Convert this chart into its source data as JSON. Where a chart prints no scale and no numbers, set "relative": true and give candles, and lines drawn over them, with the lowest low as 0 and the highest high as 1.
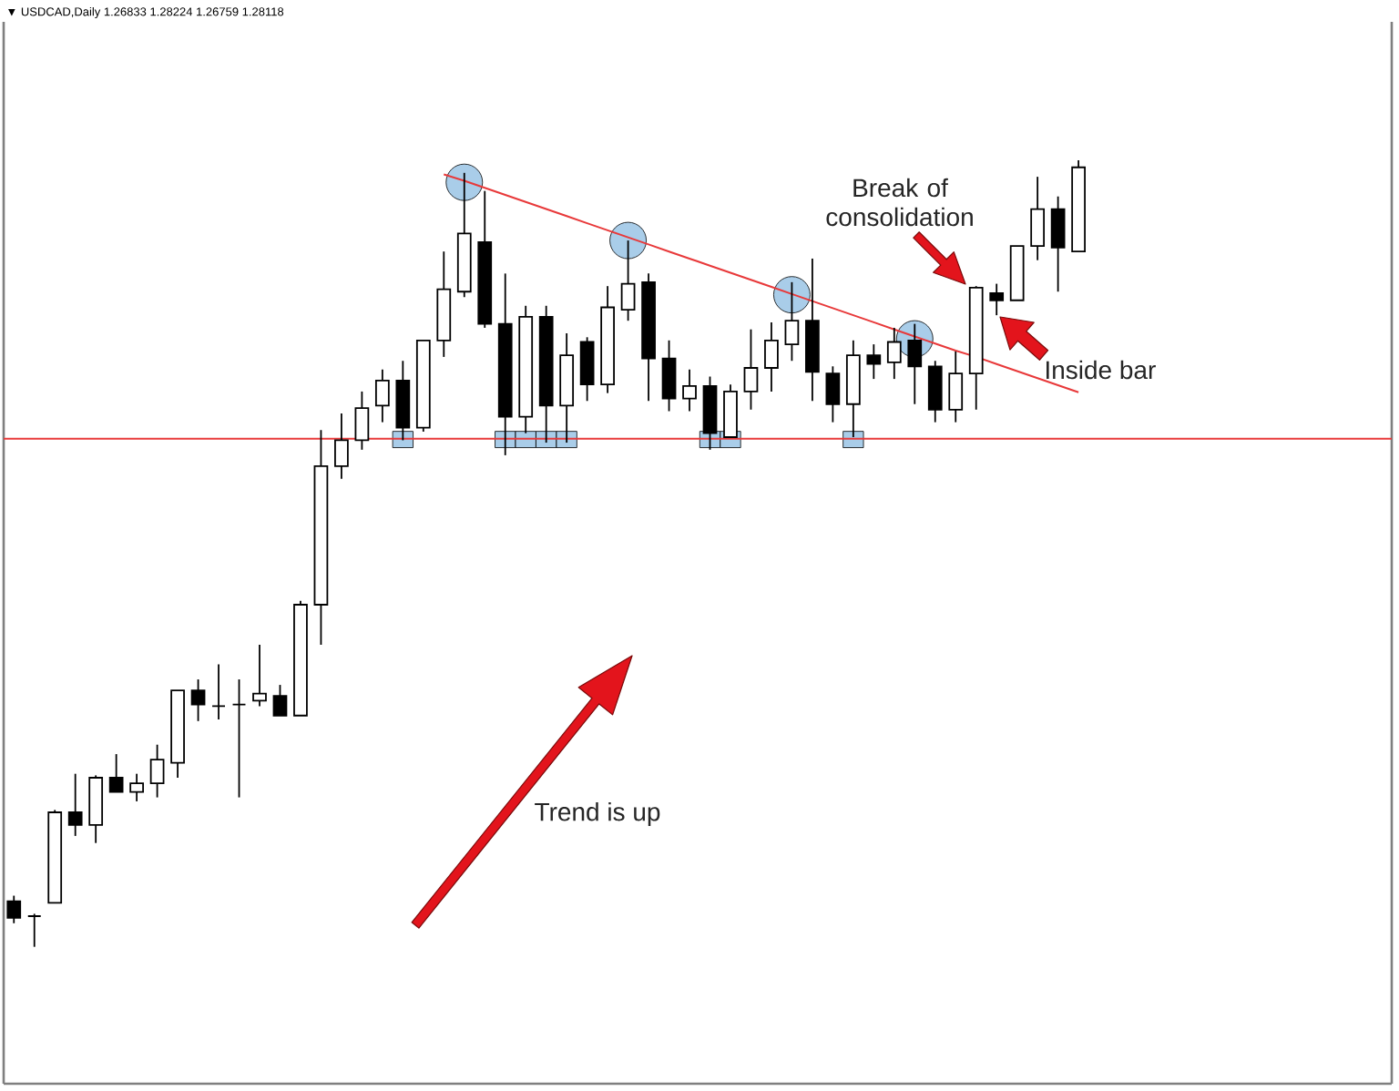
{
  "chart_data": {
    "type": "candlestick",
    "title": "▼ USDCAD,Daily 1.26833 1.28224 1.26759 1.28118",
    "relative": true,
    "categories": [
      null,
      null,
      null,
      null,
      null,
      null,
      null,
      null,
      null,
      null,
      null,
      null,
      null,
      null,
      null,
      null,
      null,
      null,
      null,
      null,
      null,
      null,
      null,
      null,
      null,
      null,
      null,
      null,
      null,
      null,
      null,
      null,
      null,
      null,
      null,
      null,
      null,
      null,
      null,
      null,
      null,
      null,
      null,
      null,
      null,
      null,
      null,
      null,
      null,
      null,
      null,
      null,
      null
    ],
    "ohlc": [
      [
        0.058,
        0.065,
        0.03,
        0.037
      ],
      [
        0.039,
        0.042,
        0.0,
        0.039
      ],
      [
        0.056,
        0.174,
        0.056,
        0.171
      ],
      [
        0.171,
        0.22,
        0.141,
        0.155
      ],
      [
        0.155,
        0.218,
        0.132,
        0.215
      ],
      [
        0.215,
        0.245,
        0.197,
        0.197
      ],
      [
        0.197,
        0.22,
        0.185,
        0.208
      ],
      [
        0.208,
        0.257,
        0.19,
        0.238
      ],
      [
        0.234,
        0.326,
        0.215,
        0.326
      ],
      [
        0.326,
        0.34,
        0.287,
        0.308
      ],
      [
        0.306,
        0.359,
        0.289,
        0.306
      ],
      [
        0.308,
        0.34,
        0.19,
        0.308
      ],
      [
        0.313,
        0.384,
        0.306,
        0.322
      ],
      [
        0.319,
        0.333,
        0.294,
        0.294
      ],
      [
        0.294,
        0.44,
        0.294,
        0.435
      ],
      [
        0.435,
        0.657,
        0.384,
        0.611
      ],
      [
        0.611,
        0.678,
        0.595,
        0.644
      ],
      [
        0.644,
        0.706,
        0.632,
        0.685
      ],
      [
        0.688,
        0.734,
        0.667,
        0.72
      ],
      [
        0.72,
        0.745,
        0.644,
        0.66
      ],
      [
        0.66,
        0.771,
        0.655,
        0.771
      ],
      [
        0.771,
        0.884,
        0.75,
        0.836
      ],
      [
        0.833,
        0.984,
        0.826,
        0.907
      ],
      [
        0.896,
        0.961,
        0.787,
        0.792
      ],
      [
        0.792,
        0.856,
        0.625,
        0.674
      ],
      [
        0.674,
        0.815,
        0.653,
        0.801
      ],
      [
        0.801,
        0.815,
        0.641,
        0.688
      ],
      [
        0.688,
        0.78,
        0.641,
        0.752
      ],
      [
        0.769,
        0.775,
        0.694,
        0.715
      ],
      [
        0.715,
        0.84,
        0.704,
        0.813
      ],
      [
        0.81,
        0.898,
        0.796,
        0.843
      ],
      [
        0.845,
        0.856,
        0.694,
        0.748
      ],
      [
        0.748,
        0.771,
        0.681,
        0.697
      ],
      [
        0.697,
        0.734,
        0.681,
        0.713
      ],
      [
        0.713,
        0.725,
        0.632,
        0.653
      ],
      [
        0.648,
        0.715,
        0.648,
        0.706
      ],
      [
        0.706,
        0.785,
        0.683,
        0.736
      ],
      [
        0.736,
        0.794,
        0.706,
        0.771
      ],
      [
        0.766,
        0.845,
        0.745,
        0.796
      ],
      [
        0.796,
        0.875,
        0.694,
        0.731
      ],
      [
        0.729,
        0.738,
        0.667,
        0.69
      ],
      [
        0.69,
        0.771,
        0.648,
        0.752
      ],
      [
        0.752,
        0.766,
        0.722,
        0.741
      ],
      [
        0.743,
        0.787,
        0.722,
        0.769
      ],
      [
        0.771,
        0.792,
        0.69,
        0.738
      ],
      [
        0.738,
        0.745,
        0.667,
        0.683
      ],
      [
        0.683,
        0.757,
        0.667,
        0.729
      ],
      [
        0.729,
        0.84,
        0.683,
        0.838
      ],
      [
        0.831,
        0.843,
        0.803,
        0.822
      ],
      [
        0.822,
        0.891,
        0.822,
        0.891
      ],
      [
        0.891,
        0.979,
        0.873,
        0.938
      ],
      [
        0.938,
        0.954,
        0.833,
        0.889
      ],
      [
        0.884,
        1.0,
        0.884,
        0.991
      ]
    ],
    "series": [
      {
        "type": "scatter",
        "marker": "circle",
        "color": "#a9cde9",
        "values": [
          null,
          null,
          null,
          null,
          null,
          null,
          null,
          null,
          null,
          null,
          null,
          null,
          null,
          null,
          null,
          null,
          null,
          null,
          null,
          null,
          null,
          null,
          0.972,
          null,
          null,
          null,
          null,
          null,
          null,
          null,
          0.898,
          null,
          null,
          null,
          null,
          null,
          null,
          null,
          0.829,
          null,
          null,
          null,
          null,
          null,
          0.773,
          null,
          null,
          null,
          null,
          null,
          null,
          null,
          null
        ]
      },
      {
        "type": "scatter",
        "marker": "square",
        "color": "#a9cde9",
        "values": [
          null,
          null,
          null,
          null,
          null,
          null,
          null,
          null,
          null,
          null,
          null,
          null,
          null,
          null,
          null,
          null,
          null,
          null,
          null,
          0.645,
          null,
          null,
          null,
          null,
          0.645,
          0.645,
          0.645,
          0.645,
          null,
          null,
          null,
          null,
          null,
          null,
          0.645,
          0.645,
          null,
          null,
          null,
          null,
          null,
          0.645,
          null,
          null,
          null,
          null,
          null,
          null,
          null,
          null,
          null,
          null,
          null
        ]
      },
      {
        "type": "line",
        "color": "#e8393a",
        "values": [
          null,
          null,
          null,
          null,
          null,
          null,
          null,
          null,
          null,
          null,
          null,
          null,
          null,
          null,
          null,
          null,
          null,
          null,
          null,
          null,
          null,
          0.982,
          0.974,
          0.965,
          0.956,
          0.947,
          0.938,
          0.929,
          0.92,
          0.911,
          0.902,
          0.893,
          0.884,
          0.875,
          0.866,
          0.857,
          0.848,
          0.839,
          0.83,
          0.821,
          0.812,
          0.803,
          0.794,
          0.785,
          0.776,
          0.767,
          0.758,
          0.75,
          0.741,
          0.732,
          0.723,
          0.714,
          0.705
        ]
      }
    ],
    "ref_lines": [
      {
        "axis": "y",
        "value": 0.646,
        "color": "#e8393a"
      }
    ],
    "annotations": [
      "Break of consolidation",
      "Inside bar",
      "Trend is up"
    ]
  }
}
